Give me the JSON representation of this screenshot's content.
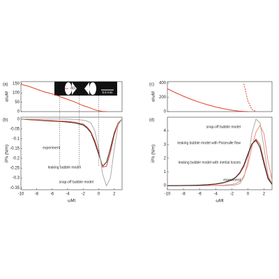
{
  "chart_data": [
    {
      "type": "line",
      "panel_label": "(a)",
      "ylabel": "α/ωM",
      "xlim": [
        -10,
        3
      ],
      "ylim": [
        0,
        160
      ],
      "yticks": [
        0,
        50,
        100,
        150
      ],
      "inset_labels": [
        "a(z,t)",
        "0.5 mm"
      ],
      "x": [
        -10,
        -9,
        -8,
        -7,
        -6,
        -5,
        -4,
        -3,
        -2,
        -1.5,
        -1,
        -0.5,
        0,
        0.5,
        1,
        1.5,
        2,
        2.5,
        3
      ],
      "series": [
        {
          "color": "#e0402a",
          "values": [
            145,
            135,
            120,
            105,
            95,
            80,
            65,
            50,
            32,
            25,
            18,
            10,
            4,
            1,
            0,
            null,
            null,
            null,
            null
          ]
        }
      ]
    },
    {
      "type": "line",
      "panel_label": "(b)",
      "ylabel": "r̄Pλ (N/m)",
      "xlabel": "ωMt",
      "xlim": [
        -10,
        3
      ],
      "ylim": [
        -0.36,
        0.01
      ],
      "yticks": [
        0,
        -0.05,
        -0.1,
        -0.15,
        -0.2,
        -0.25,
        -0.3,
        -0.35
      ],
      "xticks": [
        -10,
        -8,
        -6,
        -4,
        -2,
        0,
        2
      ],
      "x": [
        -10,
        -9,
        -8,
        -7,
        -6,
        -5,
        -4,
        -3,
        -2,
        -1.5,
        -1,
        -0.5,
        0,
        0.5,
        1,
        1.5,
        2,
        2.5,
        3
      ],
      "series": [
        {
          "name": "snap-off bubble model",
          "color": "#aaaaaa",
          "values": [
            0,
            0,
            0,
            0,
            0,
            0,
            0,
            -0.002,
            -0.005,
            -0.01,
            -0.02,
            -0.06,
            -0.15,
            -0.28,
            -0.34,
            -0.3,
            -0.15,
            -0.03,
            0
          ]
        },
        {
          "name": "experiment",
          "color": "#222222",
          "values": [
            0,
            -0.003,
            -0.005,
            -0.008,
            -0.01,
            -0.012,
            -0.015,
            -0.02,
            -0.03,
            -0.045,
            -0.07,
            -0.12,
            -0.18,
            -0.24,
            -0.22,
            -0.15,
            -0.07,
            -0.02,
            0
          ]
        },
        {
          "name": "leaking bubble model",
          "color": "#e0402a",
          "values": [
            0,
            -0.002,
            -0.004,
            -0.006,
            -0.008,
            -0.01,
            -0.012,
            -0.016,
            -0.025,
            -0.04,
            -0.065,
            -0.11,
            -0.17,
            -0.245,
            -0.24,
            -0.17,
            -0.08,
            -0.02,
            0
          ]
        }
      ]
    },
    {
      "type": "line",
      "panel_label": "(c)",
      "ylabel": "α/ωM",
      "xlim": [
        -10,
        3
      ],
      "ylim": [
        0,
        420
      ],
      "yticks": [
        0,
        200,
        400
      ],
      "x": [
        -10,
        -9,
        -8,
        -7,
        -6,
        -5,
        -4,
        -3,
        -2,
        -1.5,
        -1,
        -0.5,
        0,
        0.5,
        1,
        1.5,
        2,
        2.5,
        3
      ],
      "series": [
        {
          "color": "#e0402a",
          "values": [
            320,
            265,
            215,
            170,
            130,
            95,
            65,
            40,
            20,
            12,
            6,
            2,
            0,
            null,
            null,
            null,
            null,
            null,
            null
          ]
        },
        {
          "color": "#e0402a",
          "dashed": true,
          "values": [
            null,
            null,
            null,
            null,
            null,
            null,
            null,
            null,
            null,
            null,
            null,
            390,
            150,
            30,
            0,
            null,
            null,
            null,
            null
          ]
        }
      ]
    },
    {
      "type": "line",
      "panel_label": "(d)",
      "ylabel": "r̄Pλ (N/m)",
      "xlabel": "ωMt",
      "xlim": [
        -10,
        3
      ],
      "ylim": [
        -0.3,
        5
      ],
      "yticks": [
        0,
        1,
        2,
        3,
        4
      ],
      "xticks": [
        -10,
        -8,
        -6,
        -4,
        -2,
        0,
        2
      ],
      "x": [
        -10,
        -9,
        -8,
        -7,
        -6,
        -5,
        -4,
        -3,
        -2,
        -1.5,
        -1,
        -0.5,
        0,
        0.5,
        1,
        1.5,
        2,
        2.5,
        3
      ],
      "series": [
        {
          "name": "snap-off bubble model",
          "color": "#aaaaaa",
          "values": [
            0,
            0,
            0,
            0,
            0,
            0,
            0,
            0,
            0.02,
            0.05,
            0.15,
            0.6,
            1.8,
            3.8,
            4.85,
            4.6,
            2.8,
            0.8,
            0.1
          ]
        },
        {
          "name": "leaking bubble model with Poiseuille flow",
          "color": "#f08a7a",
          "values": [
            0,
            0,
            0,
            0,
            0,
            0,
            0.01,
            0.03,
            0.08,
            0.15,
            0.3,
            0.7,
            1.5,
            2.8,
            3.9,
            4.4,
            3.8,
            1.8,
            0.4
          ]
        },
        {
          "name": "leaking bubble model with inertial losses",
          "color": "#e0402a",
          "values": [
            0,
            0,
            0,
            0.01,
            0.02,
            0.05,
            0.1,
            0.2,
            0.4,
            0.6,
            0.9,
            1.4,
            2.2,
            3.0,
            3.4,
            3.0,
            1.8,
            0.6,
            0.1
          ]
        },
        {
          "name": "experiment",
          "color": "#222222",
          "values": [
            0,
            0,
            0.01,
            0.02,
            0.04,
            0.07,
            0.12,
            0.22,
            0.42,
            0.62,
            0.95,
            1.5,
            2.3,
            3.05,
            3.3,
            2.8,
            1.6,
            0.5,
            0.1
          ]
        }
      ]
    }
  ]
}
